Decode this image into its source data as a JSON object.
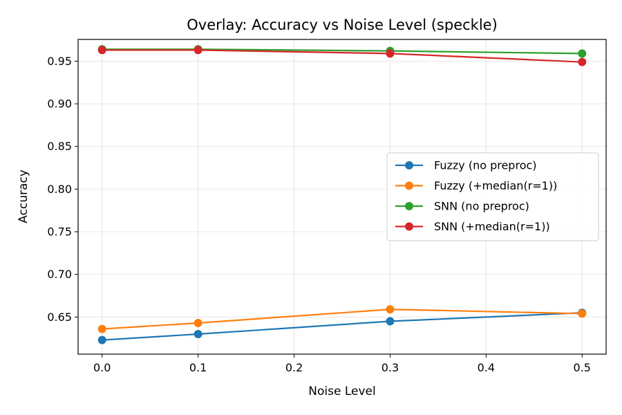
{
  "chart_data": {
    "type": "line",
    "title": "Overlay: Accuracy vs Noise Level (speckle)",
    "xlabel": "Noise Level",
    "ylabel": "Accuracy",
    "x": [
      0.0,
      0.1,
      0.3,
      0.5
    ],
    "xlim": [
      -0.025,
      0.525
    ],
    "ylim": [
      0.6065,
      0.9755
    ],
    "xticks": [
      0.0,
      0.1,
      0.2,
      0.3,
      0.4,
      0.5
    ],
    "xtick_labels": [
      "0.0",
      "0.1",
      "0.2",
      "0.3",
      "0.4",
      "0.5"
    ],
    "yticks": [
      0.65,
      0.7,
      0.75,
      0.8,
      0.85,
      0.9,
      0.95
    ],
    "ytick_labels": [
      "0.65",
      "0.70",
      "0.75",
      "0.80",
      "0.85",
      "0.90",
      "0.95"
    ],
    "grid": true,
    "legend_position": "center-right",
    "series": [
      {
        "name": "Fuzzy (no preproc)",
        "color": "#1f77b4",
        "values": [
          0.623,
          0.63,
          0.645,
          0.655
        ]
      },
      {
        "name": "Fuzzy (+median(r=1))",
        "color": "#ff7f0e",
        "values": [
          0.636,
          0.643,
          0.659,
          0.654
        ]
      },
      {
        "name": "SNN (no preproc)",
        "color": "#2ca02c",
        "values": [
          0.964,
          0.964,
          0.962,
          0.959
        ]
      },
      {
        "name": "SNN (+median(r=1))",
        "color": "#d62728",
        "values": [
          0.963,
          0.963,
          0.959,
          0.949
        ]
      }
    ]
  }
}
